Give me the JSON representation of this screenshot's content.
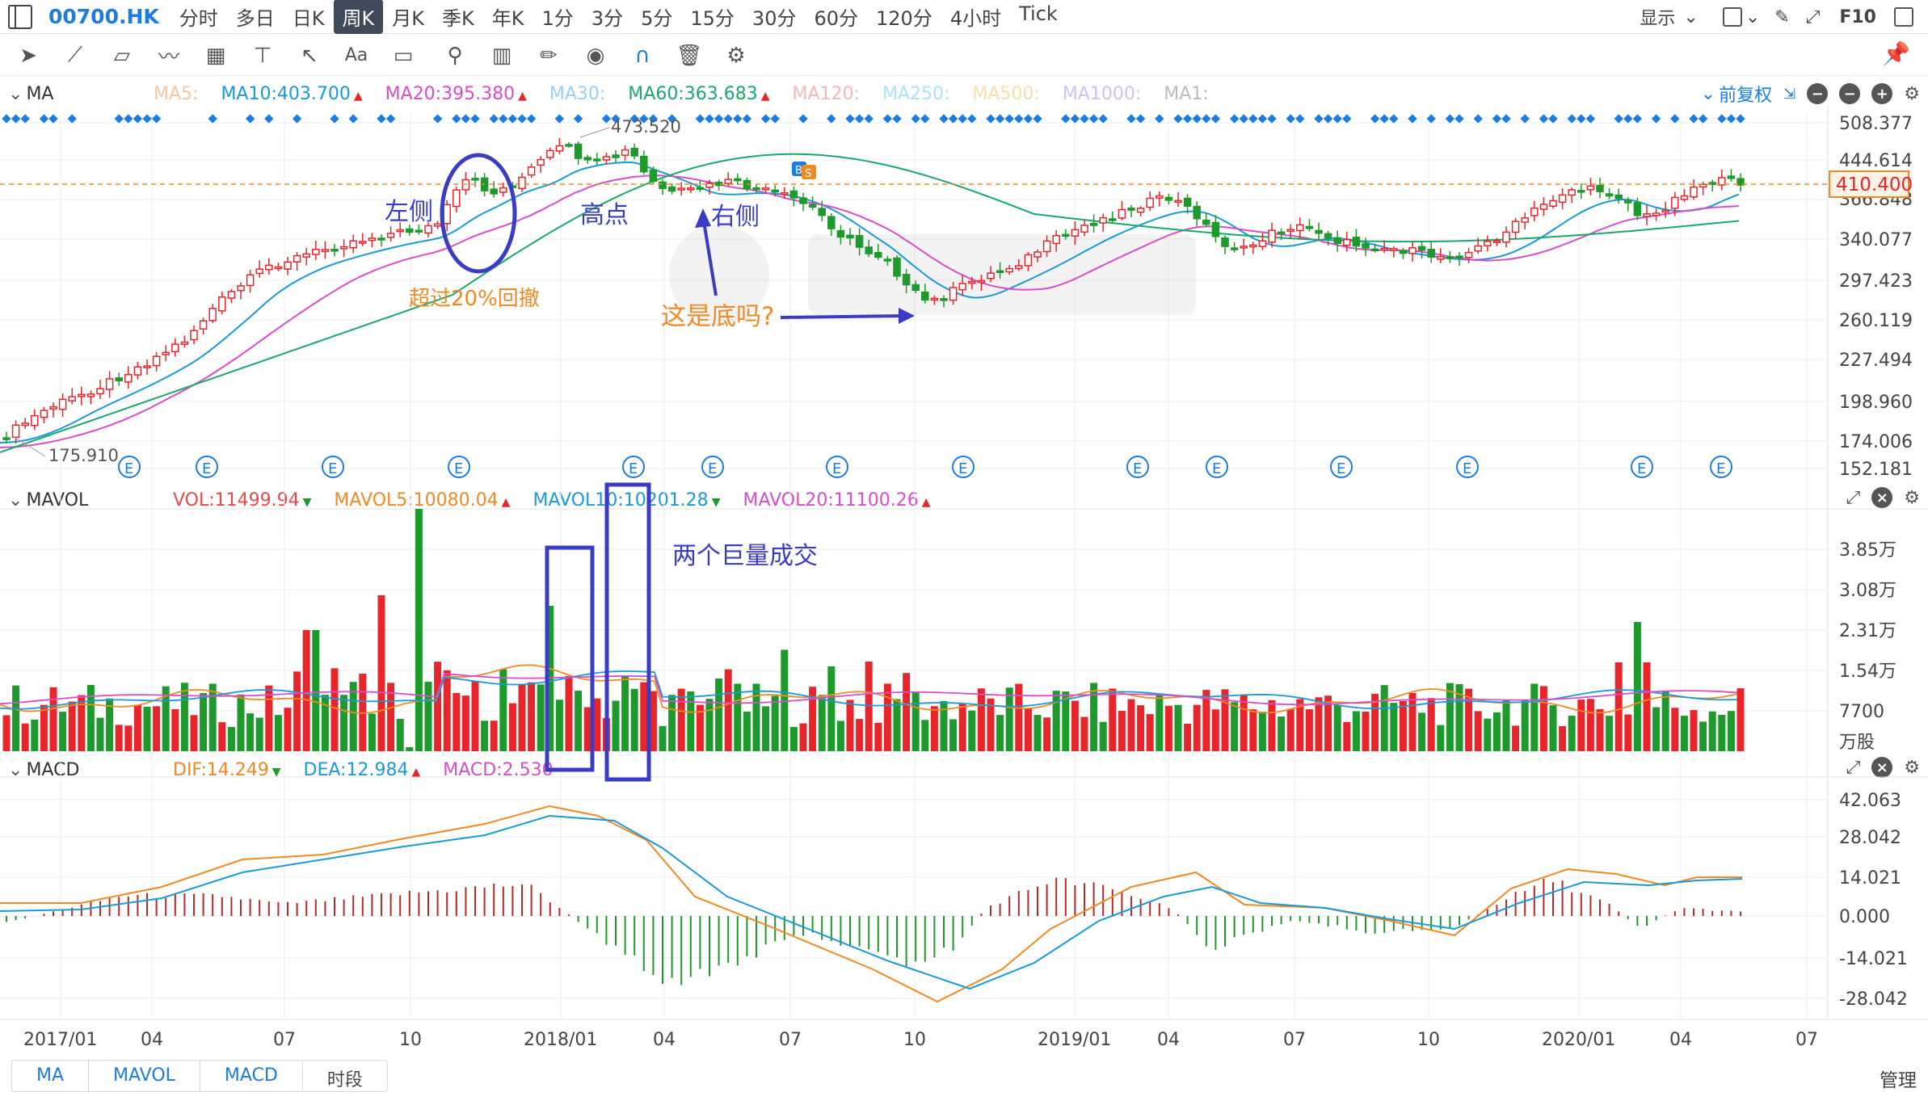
{
  "topbar": {
    "ticker": "00700.HK",
    "periods": [
      "分时",
      "多日",
      "日K",
      "周K",
      "月K",
      "季K",
      "年K",
      "1分",
      "3分",
      "5分",
      "15分",
      "30分",
      "60分",
      "120分",
      "4小时",
      "Tick"
    ],
    "active_period": "周K",
    "display_label": "显示",
    "f10_label": "F10"
  },
  "toolbar": {
    "tools": [
      "cursor-icon",
      "line-icon",
      "channel-icon",
      "wave-icon",
      "fib-icon",
      "ray-icon",
      "arrow-icon",
      "text-icon",
      "comment-icon",
      "search-icon",
      "chart-tool-icon",
      "pen-icon",
      "eye-icon",
      "magnet-icon",
      "trash-icon",
      "gear-icon"
    ],
    "text_tool_label": "Aa"
  },
  "ma_header": {
    "name": "MA",
    "items": [
      {
        "label": "MA5:",
        "color": "#f7c4a0"
      },
      {
        "label": "MA10:403.700",
        "color": "#1b9ad6",
        "arrow": "▲"
      },
      {
        "label": "MA20:395.380",
        "color": "#d84ec9",
        "arrow": "▲"
      },
      {
        "label": "MA30:",
        "color": "#9ad0f2"
      },
      {
        "label": "MA60:363.683",
        "color": "#1aa86b",
        "arrow": "▲"
      },
      {
        "label": "MA120:",
        "color": "#f5b8b8"
      },
      {
        "label": "MA250:",
        "color": "#a9e3f5"
      },
      {
        "label": "MA500:",
        "color": "#f7dfa8"
      },
      {
        "label": "MA1000:",
        "color": "#d2c0ee"
      },
      {
        "label": "MA1:",
        "color": "#bbbbbb"
      }
    ],
    "adjust_label": "前复权"
  },
  "price_axis": [
    "508.377",
    "444.614",
    "340.077",
    "297.423",
    "260.119",
    "227.494",
    "198.960",
    "174.006",
    "152.181"
  ],
  "price_partial": "366.848",
  "current_price": "410.400",
  "high_label": "473.520",
  "low_label": "175.910",
  "annotations": {
    "left_side": "左侧",
    "peak": "高点",
    "right_side": "右侧",
    "pullback": "超过20%回撤",
    "bottom_q": "这是底吗?",
    "volume_note": "两个巨量成交"
  },
  "mavol_header": {
    "name": "MAVOL",
    "items": [
      {
        "label": "VOL:11499.94",
        "color": "#e84a4a",
        "arrow": "▼"
      },
      {
        "label": "MAVOL5:10080.04",
        "color": "#f08a24",
        "arrow": "▲"
      },
      {
        "label": "MAVOL10:10201.28",
        "color": "#1b9ad6",
        "arrow": "▼"
      },
      {
        "label": "MAVOL20:11100.26",
        "color": "#d84ec9",
        "arrow": "▲"
      }
    ]
  },
  "vol_axis": [
    "3.85万",
    "3.08万",
    "2.31万",
    "1.54万",
    "7700",
    "万股"
  ],
  "macd_header": {
    "name": "MACD",
    "items": [
      {
        "label": "DIF:14.249",
        "color": "#f08a24",
        "arrow": "▼"
      },
      {
        "label": "DEA:12.984",
        "color": "#1b9ad6",
        "arrow": "▲"
      },
      {
        "label": "MACD:2.530",
        "color": "#d84ec9",
        "arrow": ""
      }
    ]
  },
  "macd_axis": [
    "42.063",
    "28.042",
    "14.021",
    "0.000",
    "-14.021",
    "-28.042"
  ],
  "time_axis": [
    "2017/01",
    "04",
    "07",
    "10",
    "2018/01",
    "04",
    "07",
    "10",
    "2019/01",
    "04",
    "07",
    "10",
    "2020/01",
    "04",
    "07"
  ],
  "earnings_marker": "E",
  "bs_marker": {
    "b": "B",
    "s": "S"
  },
  "bottom_tabs": [
    "MA",
    "MAVOL",
    "MACD",
    "时段"
  ],
  "manage_label": "管理",
  "colors": {
    "up": "#e8252b",
    "down": "#1e9a2c",
    "accent": "#1b7ce3",
    "annot_blue": "#3b3cc4",
    "annot_orange": "#f08a24"
  }
}
